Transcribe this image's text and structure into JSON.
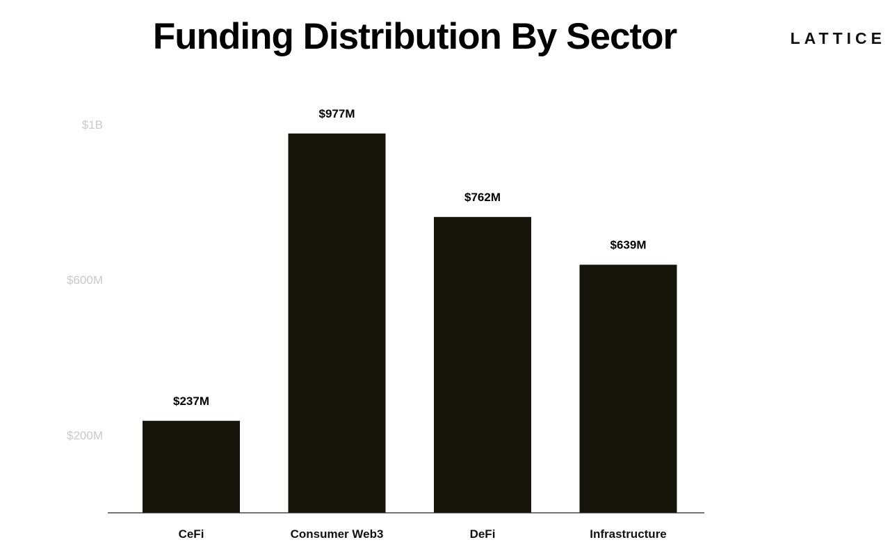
{
  "header": {
    "title": "Funding Distribution By Sector",
    "logo_text": "LATTICE"
  },
  "chart_data": {
    "type": "bar",
    "title": "Funding Distribution By Sector",
    "xlabel": "",
    "ylabel": "",
    "categories": [
      "CeFi",
      "Consumer Web3",
      "DeFi",
      "Infrastructure"
    ],
    "values": [
      237,
      977,
      762,
      639
    ],
    "value_labels": [
      "$237M",
      "$977M",
      "$762M",
      "$639M"
    ],
    "unit": "$M",
    "y_ticks": [
      {
        "value": 200,
        "label": "$200M"
      },
      {
        "value": 600,
        "label": "$600M"
      },
      {
        "value": 1000,
        "label": "$1B"
      }
    ],
    "ylim": [
      0,
      1000
    ],
    "grid": false,
    "legend": "none",
    "bar_color": "#17140c",
    "tick_color": "#c9c9c9"
  }
}
